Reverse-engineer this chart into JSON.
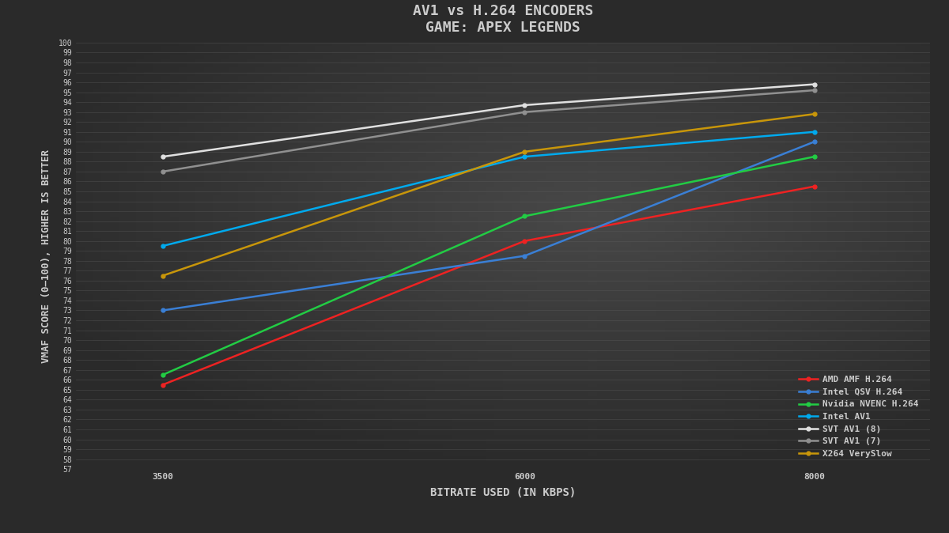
{
  "title_line1": "AV1 vs H.264 ENCODERS",
  "title_line2": "GAME: APEX LEGENDS",
  "xlabel": "BITRATE USED (IN KBPS)",
  "ylabel": "VMAF SCORE (0–100), HIGHER IS BETTER",
  "bitrates": [
    3500,
    6000,
    8000
  ],
  "series": [
    {
      "label": "AMD AMF H.264",
      "color": "#ee2222",
      "values": [
        65.5,
        80.0,
        85.5
      ]
    },
    {
      "label": "Intel QSV H.264",
      "color": "#3a7fd5",
      "values": [
        73.0,
        78.5,
        90.0
      ]
    },
    {
      "label": "Nvidia NVENC H.264",
      "color": "#22cc44",
      "values": [
        66.5,
        82.5,
        88.5
      ]
    },
    {
      "label": "Intel AV1",
      "color": "#00aaee",
      "values": [
        79.5,
        88.5,
        91.0
      ]
    },
    {
      "label": "SVT AV1 (8)",
      "color": "#e0e0e0",
      "values": [
        88.5,
        93.7,
        95.8
      ]
    },
    {
      "label": "SVT AV1 (7)",
      "color": "#909090",
      "values": [
        87.0,
        93.0,
        95.2
      ]
    },
    {
      "label": "X264 VerySlow",
      "color": "#c8960a",
      "values": [
        76.5,
        89.0,
        92.8
      ]
    }
  ],
  "ylim": [
    57,
    100
  ],
  "yticks": [
    57,
    58,
    59,
    60,
    61,
    62,
    63,
    64,
    65,
    66,
    67,
    68,
    69,
    70,
    71,
    72,
    73,
    74,
    75,
    76,
    77,
    78,
    79,
    80,
    81,
    82,
    83,
    84,
    85,
    86,
    87,
    88,
    89,
    90,
    91,
    92,
    93,
    94,
    95,
    96,
    97,
    98,
    99,
    100
  ],
  "bg_dark": "#2a2a2a",
  "bg_mid": "#484848",
  "grid_color": "#606060",
  "text_color": "#cccccc",
  "title_fontsize": 13,
  "label_fontsize": 9,
  "tick_fontsize": 7,
  "legend_fontsize": 8,
  "linewidth": 1.8,
  "markersize": 3.5,
  "xlim_left": 2900,
  "xlim_right": 8800
}
